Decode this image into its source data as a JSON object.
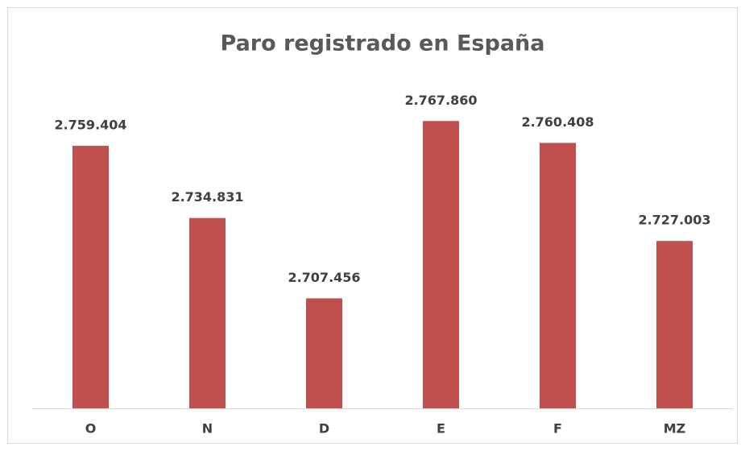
{
  "chart_data": {
    "type": "bar",
    "title": "Paro registrado en España",
    "categories": [
      "O",
      "N",
      "D",
      "E",
      "F",
      "MZ"
    ],
    "values": [
      2759404,
      2734831,
      2707456,
      2767860,
      2760408,
      2727003
    ],
    "value_labels": [
      "2.759.404",
      "2.734.831",
      "2.707.456",
      "2.767.860",
      "2.760.408",
      "2.727.003"
    ],
    "color": "#c0504d",
    "ylim": [
      2670000,
      2780000
    ]
  }
}
